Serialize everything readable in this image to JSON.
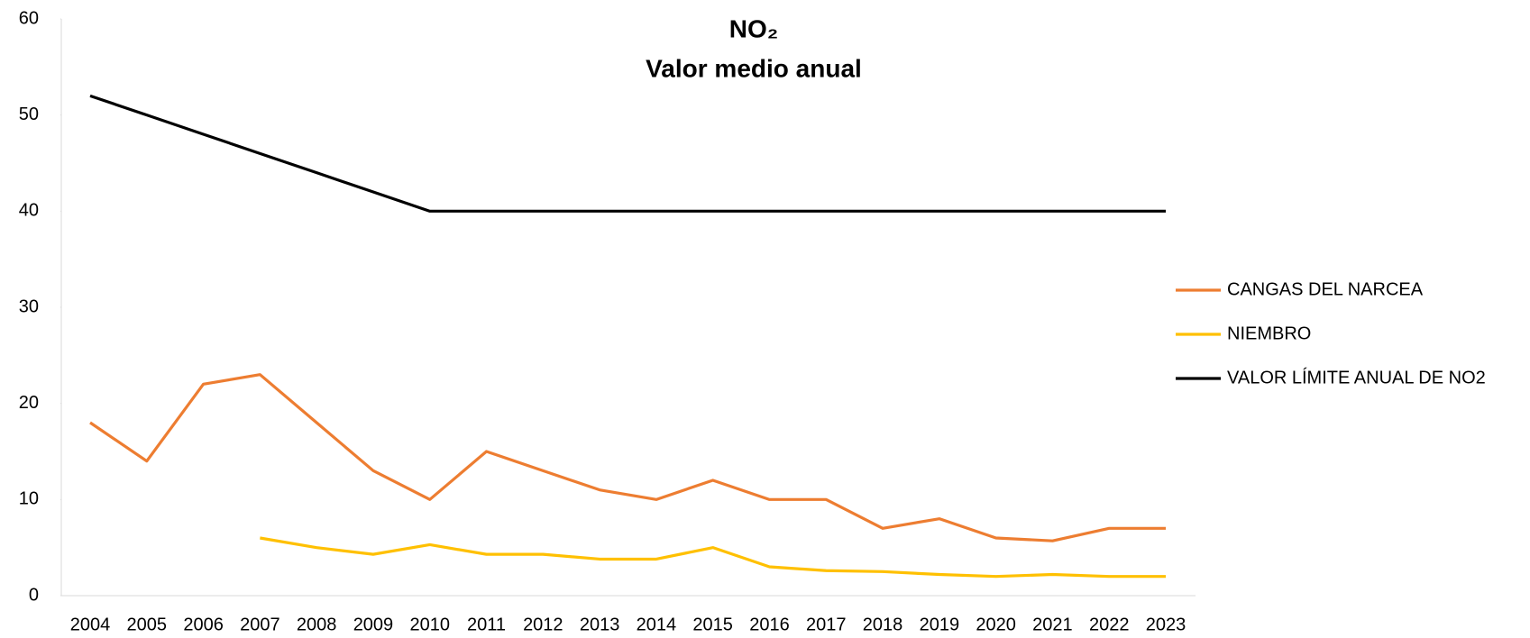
{
  "chart_data": {
    "type": "line",
    "title": "NO₂",
    "subtitle": "Valor medio anual",
    "categories": [
      "2004",
      "2005",
      "2006",
      "2007",
      "2008",
      "2009",
      "2010",
      "2011",
      "2012",
      "2013",
      "2014",
      "2015",
      "2016",
      "2017",
      "2018",
      "2019",
      "2020",
      "2021",
      "2022",
      "2023"
    ],
    "series": [
      {
        "name": "CANGAS DEL NARCEA",
        "color": "#ed7d31",
        "values": [
          18,
          14,
          22,
          23,
          18,
          13,
          10,
          15,
          13,
          11,
          10,
          12,
          10,
          10,
          7,
          8,
          6,
          5.7,
          7,
          7
        ]
      },
      {
        "name": "NIEMBRO",
        "color": "#ffc000",
        "values": [
          null,
          null,
          null,
          6,
          5,
          4.3,
          5.3,
          4.3,
          4.3,
          3.8,
          3.8,
          5,
          3,
          2.6,
          2.5,
          2.2,
          2,
          2.2,
          2,
          2
        ]
      },
      {
        "name": "VALOR LÍMITE ANUAL DE NO2",
        "color": "#000000",
        "values": [
          52,
          50,
          48,
          46,
          44,
          42,
          40,
          40,
          40,
          40,
          40,
          40,
          40,
          40,
          40,
          40,
          40,
          40,
          40,
          40
        ]
      }
    ],
    "ylim": [
      0,
      60
    ],
    "yticks": [
      0,
      10,
      20,
      30,
      40,
      50,
      60
    ],
    "grid": false,
    "legend": "right"
  }
}
